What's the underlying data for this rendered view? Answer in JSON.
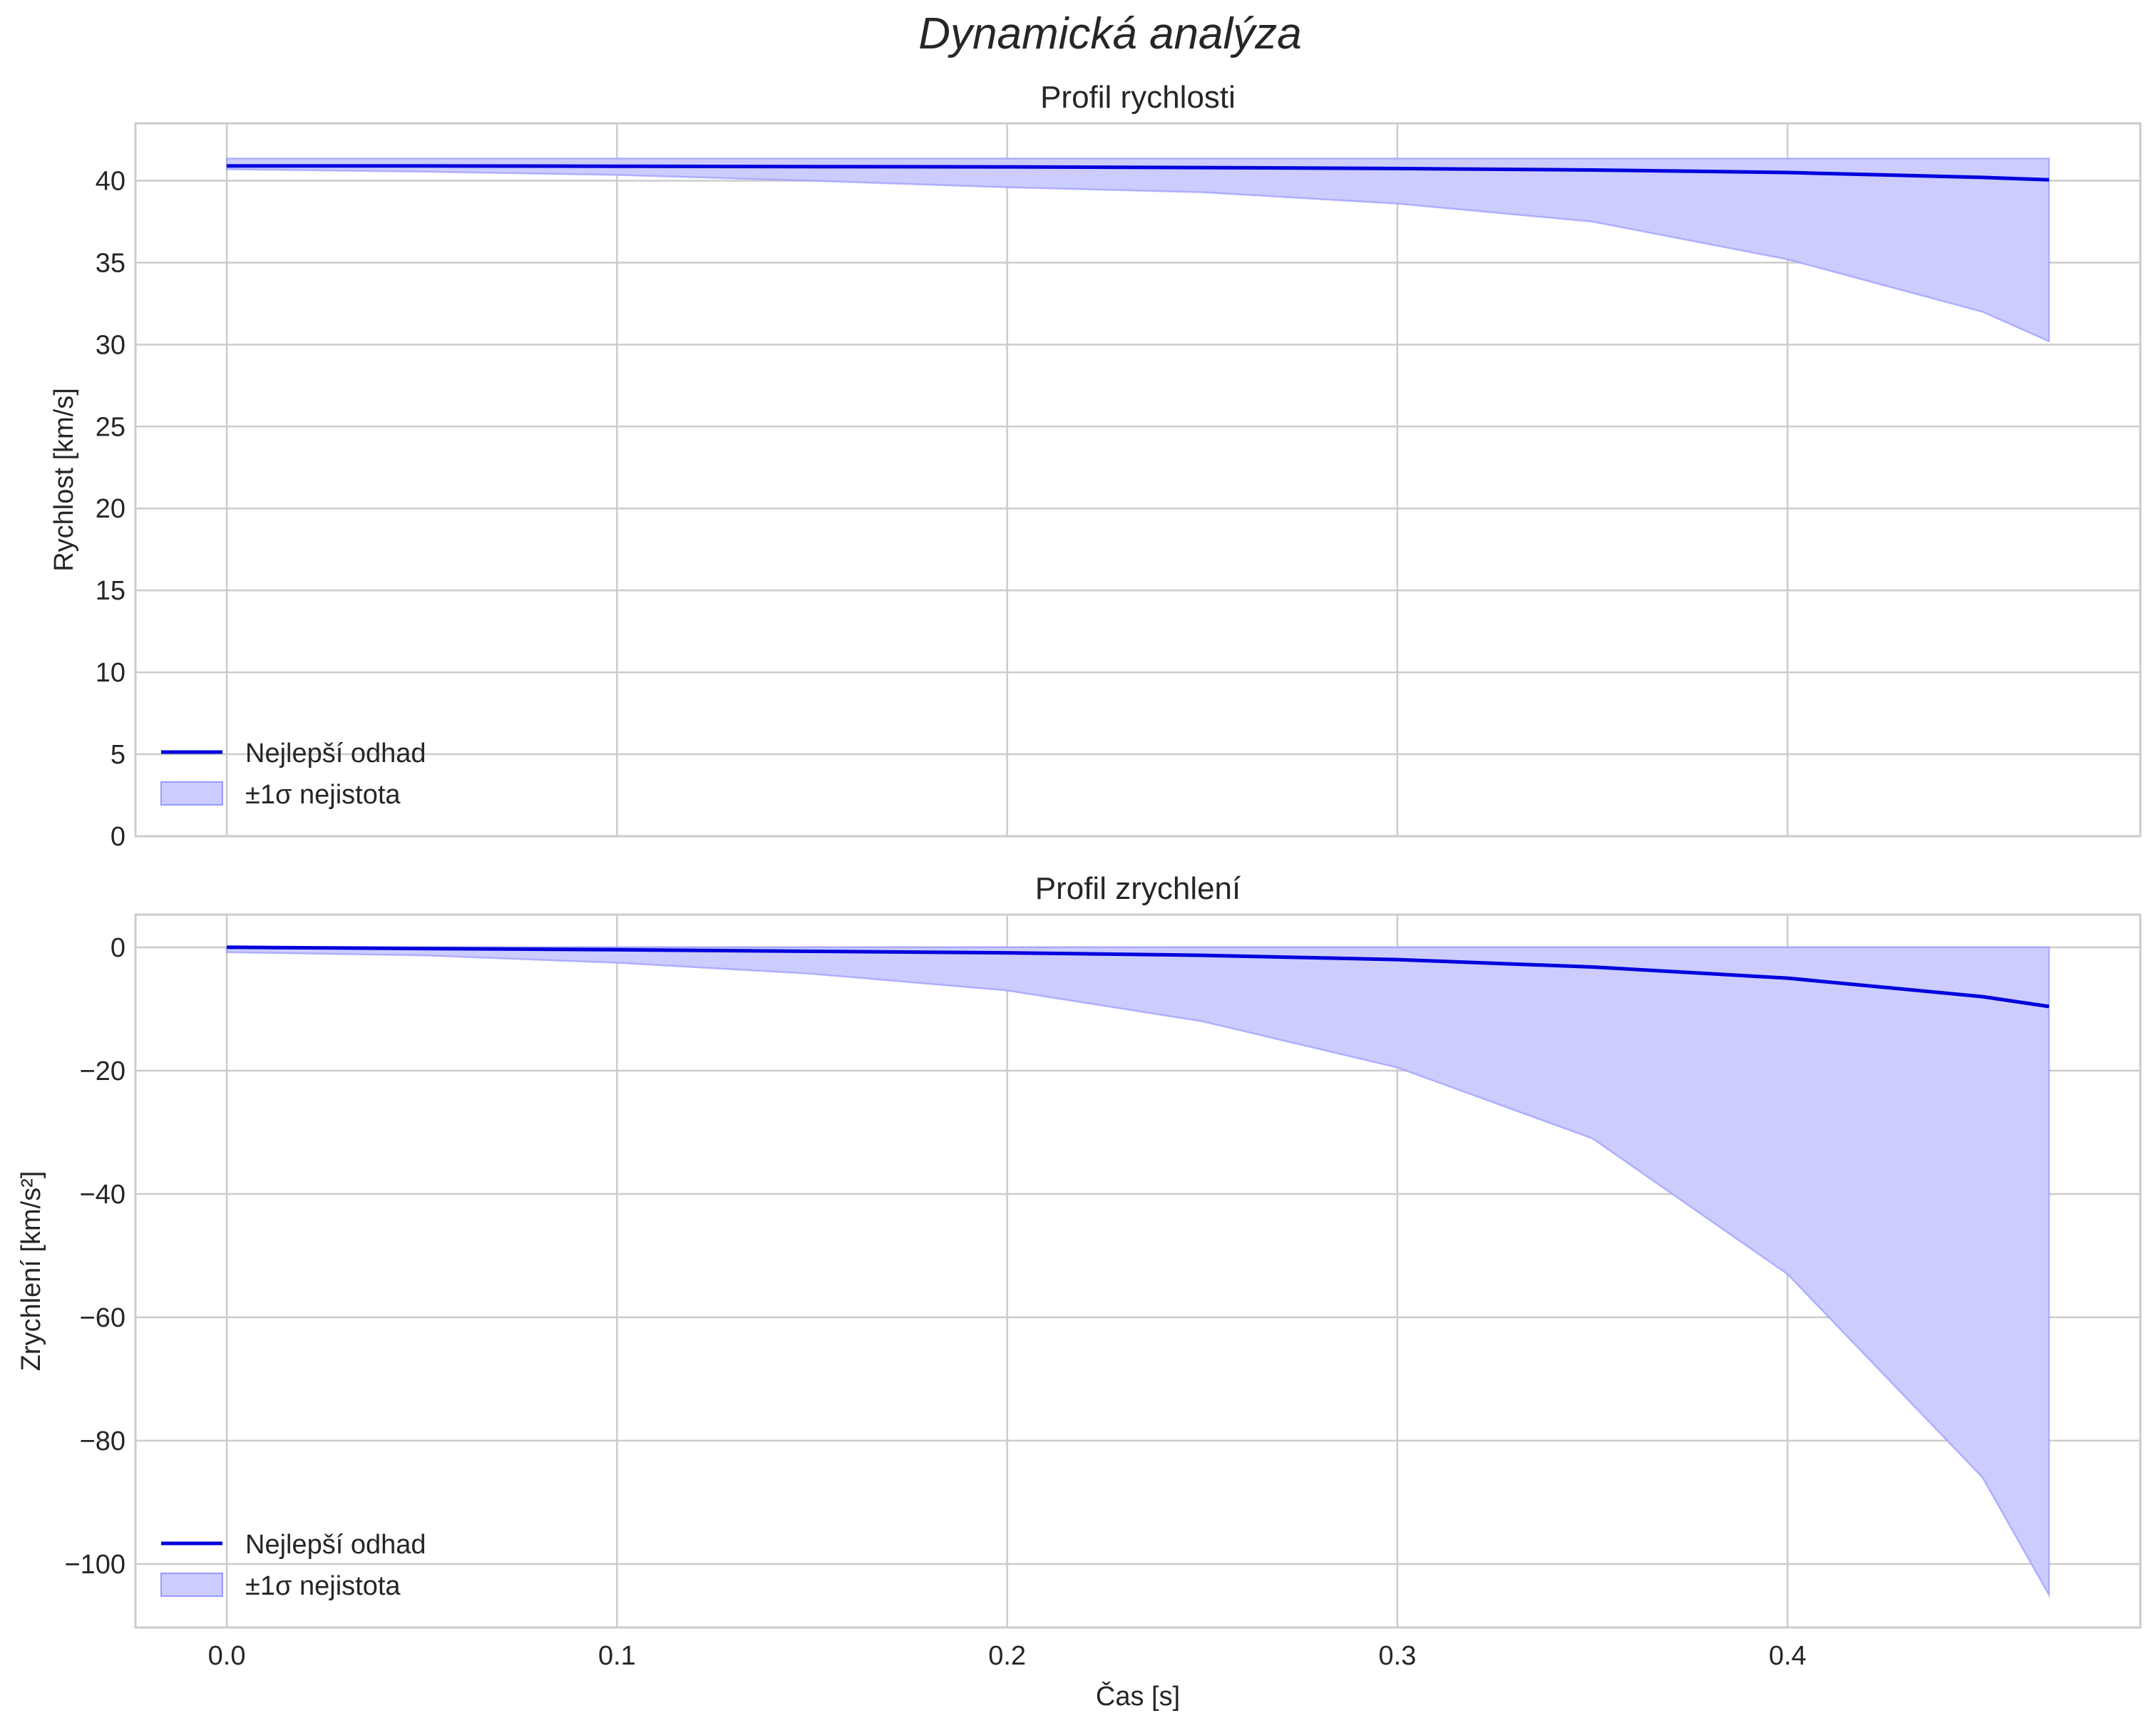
{
  "figure": {
    "title": "Dynamická analýza"
  },
  "chart_data": [
    {
      "type": "line",
      "title": "Profil rychlosti",
      "xlabel": "",
      "ylabel": "Rychlost [km/s]",
      "xlim": [
        -0.0234,
        0.4904
      ],
      "ylim": [
        0,
        43.5
      ],
      "xticks": [
        0.0,
        0.1,
        0.2,
        0.3,
        0.4
      ],
      "yticks": [
        0,
        5,
        10,
        15,
        20,
        25,
        30,
        35,
        40
      ],
      "ytick_labels": [
        "0",
        "5",
        "10",
        "15",
        "20",
        "25",
        "30",
        "35",
        "40"
      ],
      "show_xtick_labels": false,
      "grid": true,
      "legend": {
        "placement": "lower-left",
        "entries": [
          "Nejlepší odhad",
          "±1σ nejistota"
        ]
      },
      "series": [
        {
          "name": "Nejlepší odhad",
          "kind": "line",
          "color": "#0000dd",
          "x": [
            0,
            0.05,
            0.1,
            0.15,
            0.2,
            0.25,
            0.3,
            0.35,
            0.4,
            0.45,
            0.467
          ],
          "y": [
            40.9,
            40.9,
            40.88,
            40.86,
            40.84,
            40.8,
            40.74,
            40.65,
            40.5,
            40.2,
            40.05
          ]
        },
        {
          "name": "±1σ nejistota",
          "kind": "band",
          "color": "#9999ff",
          "x": [
            0,
            0.05,
            0.1,
            0.15,
            0.2,
            0.25,
            0.3,
            0.35,
            0.4,
            0.45,
            0.467
          ],
          "upper": [
            41.35,
            41.35,
            41.35,
            41.35,
            41.35,
            41.35,
            41.35,
            41.35,
            41.35,
            41.35,
            41.35
          ],
          "lower": [
            40.7,
            40.55,
            40.35,
            40.0,
            39.6,
            39.3,
            38.6,
            37.5,
            35.2,
            32.0,
            30.2
          ]
        }
      ]
    },
    {
      "type": "line",
      "title": "Profil zrychlení",
      "xlabel": "Čas [s]",
      "ylabel": "Zrychlení [km/s²]",
      "xlim": [
        -0.0234,
        0.4904
      ],
      "ylim": [
        -110.3,
        5.3
      ],
      "xticks": [
        0.0,
        0.1,
        0.2,
        0.3,
        0.4
      ],
      "xtick_labels": [
        "0.0",
        "0.1",
        "0.2",
        "0.3",
        "0.4"
      ],
      "yticks": [
        0,
        -20,
        -40,
        -60,
        -80,
        -100
      ],
      "ytick_labels": [
        "0",
        "−20",
        "−40",
        "−60",
        "−80",
        "−100"
      ],
      "show_xtick_labels": true,
      "grid": true,
      "legend": {
        "placement": "lower-left",
        "entries": [
          "Nejlepší odhad",
          "±1σ nejistota"
        ]
      },
      "series": [
        {
          "name": "Nejlepší odhad",
          "kind": "line",
          "color": "#0000dd",
          "x": [
            0,
            0.05,
            0.1,
            0.15,
            0.2,
            0.25,
            0.3,
            0.35,
            0.4,
            0.45,
            0.467
          ],
          "y": [
            0,
            -0.2,
            -0.4,
            -0.65,
            -0.9,
            -1.3,
            -2.0,
            -3.2,
            -5.0,
            -8.0,
            -9.6
          ]
        },
        {
          "name": "±1σ nejistota",
          "kind": "band",
          "color": "#9999ff",
          "x": [
            0,
            0.05,
            0.1,
            0.15,
            0.2,
            0.25,
            0.3,
            0.35,
            0.4,
            0.45,
            0.467
          ],
          "upper": [
            0,
            0,
            0,
            0,
            0,
            0,
            0,
            0,
            0,
            0,
            0
          ],
          "lower": [
            -0.8,
            -1.3,
            -2.5,
            -4.3,
            -7.0,
            -12.0,
            -19.5,
            -31.0,
            -53.0,
            -86.0,
            -105.0
          ]
        }
      ]
    }
  ]
}
